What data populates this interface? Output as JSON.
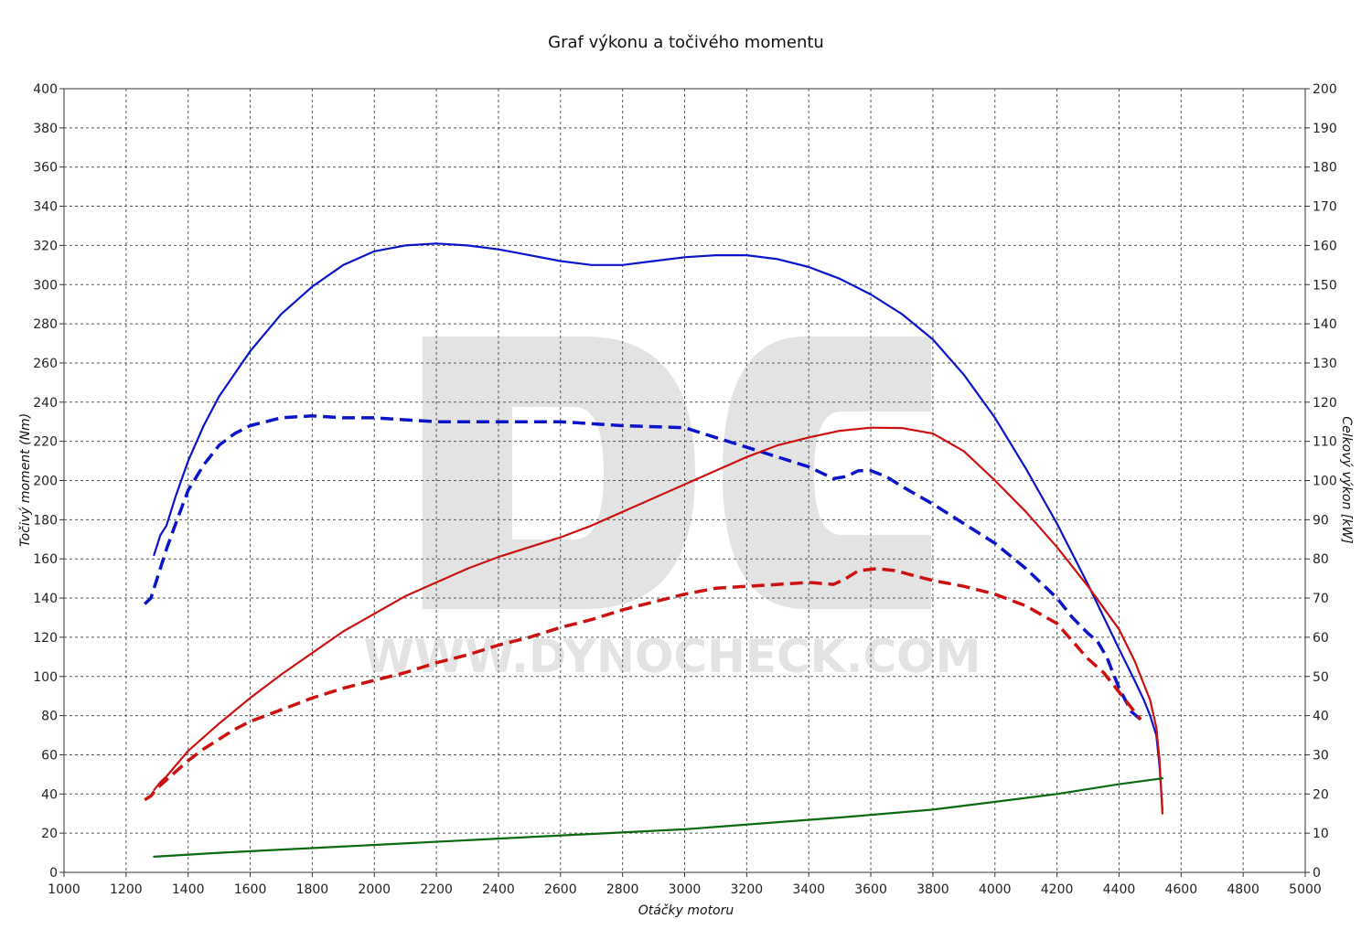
{
  "chart_data": {
    "type": "line",
    "title": "Graf výkonu a točivého momentu",
    "xlabel": "Otáčky motoru",
    "ylabel_left": "Točivý moment (Nm)",
    "ylabel_right": "Celkový výkon [kW]",
    "xlim": [
      1000,
      5000
    ],
    "ylim_left": [
      0,
      400
    ],
    "ylim_right": [
      0,
      200
    ],
    "x_ticks": [
      1000,
      1200,
      1400,
      1600,
      1800,
      2000,
      2200,
      2400,
      2600,
      2800,
      3000,
      3200,
      3400,
      3600,
      3800,
      4000,
      4200,
      4400,
      4600,
      4800,
      5000
    ],
    "y_ticks_left": [
      0,
      20,
      40,
      60,
      80,
      100,
      120,
      140,
      160,
      180,
      200,
      220,
      240,
      260,
      280,
      300,
      320,
      340,
      360,
      380,
      400
    ],
    "y_ticks_right": [
      0,
      10,
      20,
      30,
      40,
      50,
      60,
      70,
      80,
      90,
      100,
      110,
      120,
      130,
      140,
      150,
      160,
      170,
      180,
      190,
      200
    ],
    "grid": true,
    "watermark": {
      "logo": "DC",
      "url": "WWW.DYNOCHECK.COM"
    },
    "series": [
      {
        "axis": "left",
        "color": "#0a14c8",
        "dash": false,
        "x": [
          1290,
          1310,
          1330,
          1360,
          1400,
          1450,
          1500,
          1600,
          1700,
          1800,
          1900,
          2000,
          2100,
          2200,
          2300,
          2400,
          2500,
          2600,
          2700,
          2800,
          2900,
          3000,
          3100,
          3200,
          3300,
          3400,
          3500,
          3600,
          3700,
          3800,
          3900,
          4000,
          4100,
          4200,
          4300,
          4400,
          4450,
          4480,
          4500,
          4520,
          4530,
          4540
        ],
        "y": [
          162,
          172,
          177,
          192,
          210,
          228,
          243,
          266,
          285,
          299,
          310,
          317,
          320,
          321,
          320,
          318,
          315,
          312,
          310,
          310,
          312,
          314,
          315,
          315,
          313,
          309,
          303,
          295,
          285,
          272,
          254,
          232,
          206,
          178,
          147,
          114,
          98,
          88,
          80,
          70,
          55,
          32
        ]
      },
      {
        "axis": "left",
        "color": "#0a14c8",
        "dash": true,
        "x": [
          1260,
          1280,
          1300,
          1330,
          1360,
          1400,
          1450,
          1500,
          1550,
          1600,
          1700,
          1800,
          1900,
          2000,
          2100,
          2200,
          2400,
          2600,
          2800,
          3000,
          3100,
          3200,
          3300,
          3400,
          3480,
          3520,
          3560,
          3600,
          3650,
          3700,
          3800,
          3900,
          4000,
          4100,
          4200,
          4250,
          4300,
          4330,
          4360,
          4400,
          4440,
          4470
        ],
        "y": [
          137,
          140,
          150,
          165,
          178,
          195,
          208,
          218,
          224,
          228,
          232,
          233,
          232,
          232,
          231,
          230,
          230,
          230,
          228,
          227,
          222,
          217,
          212,
          207,
          201,
          202,
          205,
          205,
          202,
          197,
          188,
          178,
          168,
          155,
          140,
          130,
          122,
          118,
          110,
          94,
          82,
          78
        ]
      },
      {
        "axis": "right",
        "color": "#cc1010",
        "dash": false,
        "x": [
          1290,
          1310,
          1330,
          1400,
          1500,
          1600,
          1700,
          1800,
          1900,
          2000,
          2100,
          2200,
          2300,
          2400,
          2500,
          2600,
          2700,
          2800,
          2900,
          3000,
          3100,
          3200,
          3300,
          3400,
          3500,
          3600,
          3700,
          3800,
          3900,
          4000,
          4100,
          4200,
          4300,
          4400,
          4450,
          4500,
          4520,
          4530,
          4540
        ],
        "y": [
          21,
          23,
          24.5,
          31,
          38,
          44.5,
          50.5,
          56,
          61.5,
          66,
          70.5,
          74,
          77.5,
          80.5,
          83,
          85.5,
          88.5,
          92,
          95.5,
          99,
          102.5,
          106,
          109,
          111,
          112.7,
          113.5,
          113.4,
          112,
          107.5,
          100,
          92,
          83,
          73,
          62,
          54,
          44,
          37,
          29,
          15
        ]
      },
      {
        "axis": "left",
        "color": "#cc1010",
        "dash": true,
        "x": [
          1260,
          1280,
          1300,
          1350,
          1400,
          1450,
          1500,
          1550,
          1600,
          1700,
          1800,
          1900,
          2000,
          2100,
          2200,
          2300,
          2400,
          2500,
          2600,
          2700,
          2800,
          2900,
          3000,
          3100,
          3200,
          3300,
          3400,
          3480,
          3520,
          3560,
          3620,
          3680,
          3750,
          3800,
          3900,
          4000,
          4100,
          4200,
          4250,
          4300,
          4350,
          4400,
          4430,
          4460,
          4470
        ],
        "y": [
          37,
          39,
          43,
          50,
          57,
          63,
          68,
          73,
          77,
          83,
          89,
          94,
          98,
          102,
          107,
          111,
          116,
          120,
          125,
          129,
          134,
          138,
          142,
          145,
          146,
          147,
          148,
          147,
          150,
          154,
          155,
          154,
          151,
          149,
          146,
          142,
          136,
          127,
          118,
          109,
          102,
          92,
          86,
          80,
          78
        ]
      },
      {
        "axis": "right",
        "color": "#0a6a10",
        "dash": false,
        "x": [
          1290,
          1500,
          2000,
          2500,
          3000,
          3500,
          3800,
          4000,
          4200,
          4400,
          4540
        ],
        "y": [
          4,
          5,
          7,
          9,
          11,
          14,
          16,
          18,
          20,
          22.5,
          24
        ]
      }
    ]
  }
}
